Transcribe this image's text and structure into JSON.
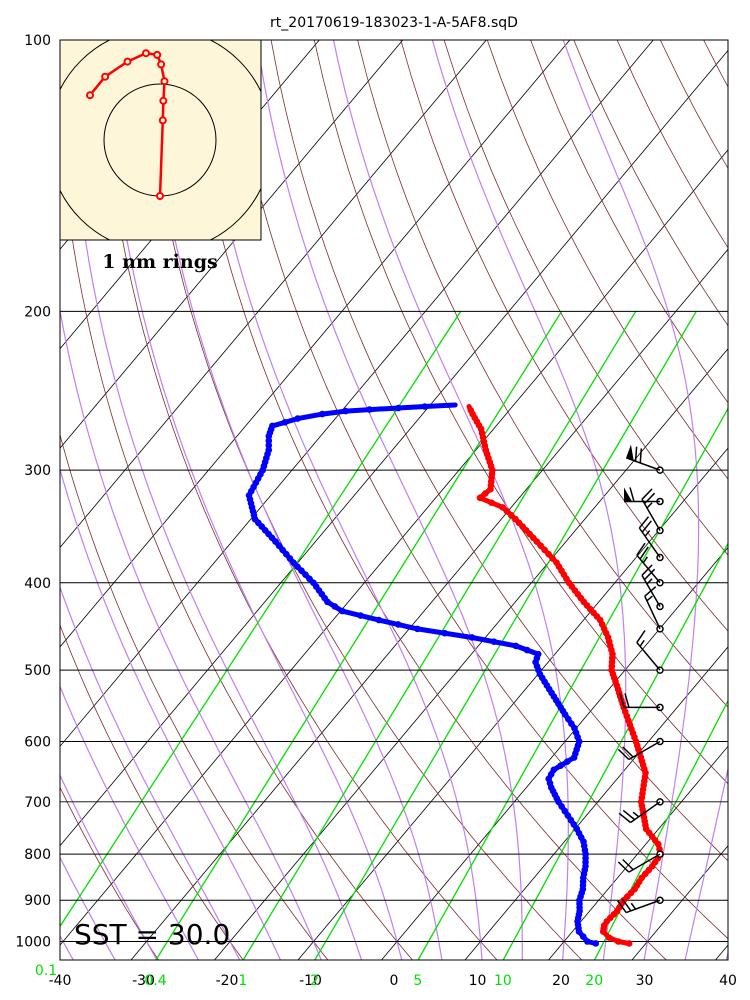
{
  "chart_data": {
    "type": "scatter",
    "subtype": "skew-T log-P thermodynamic diagram with inset hodograph",
    "title": "rt_20170619-183023-1-A-5AF8.sqD",
    "x_axis": {
      "quantity": "temperature (°C)",
      "range": [
        -40,
        40
      ],
      "ticks": [
        -40,
        -30,
        -20,
        -10,
        0,
        10,
        20,
        30,
        40
      ]
    },
    "y_axis": {
      "quantity": "pressure (hPa)",
      "scale": "log",
      "range": [
        1050,
        100
      ],
      "ticks": [
        100,
        200,
        300,
        400,
        500,
        600,
        700,
        800,
        900,
        1000
      ]
    },
    "mixing_ratio_labels": [
      "0.1",
      "0.4",
      "1",
      "2",
      "5",
      "10",
      "20"
    ],
    "mixing_ratio_values": [
      0.1,
      0.4,
      1,
      2,
      5,
      10,
      20
    ],
    "annotation": "SST = 30.0",
    "grid": true,
    "series": [
      {
        "color": "#ff0000",
        "points": [
          [
            1005,
            28.0
          ],
          [
            1000,
            26.5
          ],
          [
            990,
            25.0
          ],
          [
            975,
            23.7
          ],
          [
            960,
            23.2
          ],
          [
            950,
            23.1
          ],
          [
            925,
            23.3
          ],
          [
            900,
            23.0
          ],
          [
            875,
            23.2
          ],
          [
            850,
            22.9
          ],
          [
            825,
            23.0
          ],
          [
            800,
            22.8
          ],
          [
            780,
            21.5
          ],
          [
            750,
            18.5
          ],
          [
            700,
            15.2
          ],
          [
            650,
            12.8
          ],
          [
            600,
            8.5
          ],
          [
            575,
            6.1
          ],
          [
            550,
            3.6
          ],
          [
            525,
            1.1
          ],
          [
            500,
            -1.6
          ],
          [
            480,
            -3.1
          ],
          [
            460,
            -5.3
          ],
          [
            440,
            -8.0
          ],
          [
            420,
            -11.8
          ],
          [
            400,
            -15.5
          ],
          [
            380,
            -19.0
          ],
          [
            360,
            -23.5
          ],
          [
            340,
            -28.3
          ],
          [
            330,
            -31.0
          ],
          [
            322,
            -34.7
          ],
          [
            315,
            -34.3
          ],
          [
            300,
            -36.0
          ],
          [
            285,
            -38.8
          ],
          [
            270,
            -41.5
          ],
          [
            260,
            -44.0
          ],
          [
            255,
            -45.2
          ]
        ]
      },
      {
        "color": "#0000ff",
        "points": [
          [
            1005,
            24.0
          ],
          [
            1000,
            22.8
          ],
          [
            975,
            20.8
          ],
          [
            950,
            19.6
          ],
          [
            925,
            18.8
          ],
          [
            900,
            17.7
          ],
          [
            875,
            17.0
          ],
          [
            850,
            15.9
          ],
          [
            825,
            15.0
          ],
          [
            800,
            13.8
          ],
          [
            775,
            12.3
          ],
          [
            750,
            10.2
          ],
          [
            725,
            7.8
          ],
          [
            700,
            5.3
          ],
          [
            675,
            3.0
          ],
          [
            660,
            1.8
          ],
          [
            645,
            1.5
          ],
          [
            625,
            2.7
          ],
          [
            600,
            1.7
          ],
          [
            580,
            -0.2
          ],
          [
            560,
            -2.7
          ],
          [
            540,
            -5.2
          ],
          [
            520,
            -7.8
          ],
          [
            505,
            -9.8
          ],
          [
            490,
            -11.5
          ],
          [
            480,
            -12.0
          ],
          [
            470,
            -15.5
          ],
          [
            460,
            -21.6
          ],
          [
            450,
            -29.0
          ],
          [
            440,
            -34.5
          ],
          [
            430,
            -39.8
          ],
          [
            420,
            -42.5
          ],
          [
            400,
            -46.1
          ],
          [
            380,
            -50.5
          ],
          [
            360,
            -54.8
          ],
          [
            340,
            -59.5
          ],
          [
            320,
            -62.6
          ],
          [
            300,
            -63.5
          ],
          [
            285,
            -64.8
          ],
          [
            275,
            -66.2
          ],
          [
            268,
            -66.8
          ],
          [
            263,
            -64.5
          ],
          [
            260,
            -62.0
          ],
          [
            258,
            -59.5
          ],
          [
            257,
            -56.8
          ],
          [
            256,
            -53.5
          ],
          [
            255,
            -50.5
          ],
          [
            254,
            -47.0
          ]
        ]
      }
    ],
    "wind_barbs": [
      {
        "pressure": 300,
        "direction": 290,
        "speed_kt": 70
      },
      {
        "pressure": 325,
        "direction": 270,
        "speed_kt": 60
      },
      {
        "pressure": 350,
        "direction": 330,
        "speed_kt": 25
      },
      {
        "pressure": 375,
        "direction": 325,
        "speed_kt": 25
      },
      {
        "pressure": 400,
        "direction": 320,
        "speed_kt": 25
      },
      {
        "pressure": 425,
        "direction": 330,
        "speed_kt": 25
      },
      {
        "pressure": 450,
        "direction": 335,
        "speed_kt": 15
      },
      {
        "pressure": 500,
        "direction": 320,
        "speed_kt": 15
      },
      {
        "pressure": 550,
        "direction": 270,
        "speed_kt": 20
      },
      {
        "pressure": 600,
        "direction": 240,
        "speed_kt": 20
      },
      {
        "pressure": 700,
        "direction": 235,
        "speed_kt": 25
      },
      {
        "pressure": 800,
        "direction": 240,
        "speed_kt": 20
      },
      {
        "pressure": 900,
        "direction": 250,
        "speed_kt": 25
      }
    ],
    "hodograph": {
      "caption": "1 nm rings",
      "background": "#fdf6d8",
      "trace_color": "#ff0000",
      "points": [
        [
          0,
          -1.0
        ],
        [
          0.05,
          0.35
        ],
        [
          0.06,
          0.7
        ],
        [
          0.08,
          1.05
        ],
        [
          0.02,
          1.35
        ],
        [
          -0.05,
          1.52
        ],
        [
          -0.25,
          1.55
        ],
        [
          -0.58,
          1.4
        ],
        [
          -0.98,
          1.13
        ],
        [
          -1.25,
          0.8
        ]
      ]
    }
  }
}
